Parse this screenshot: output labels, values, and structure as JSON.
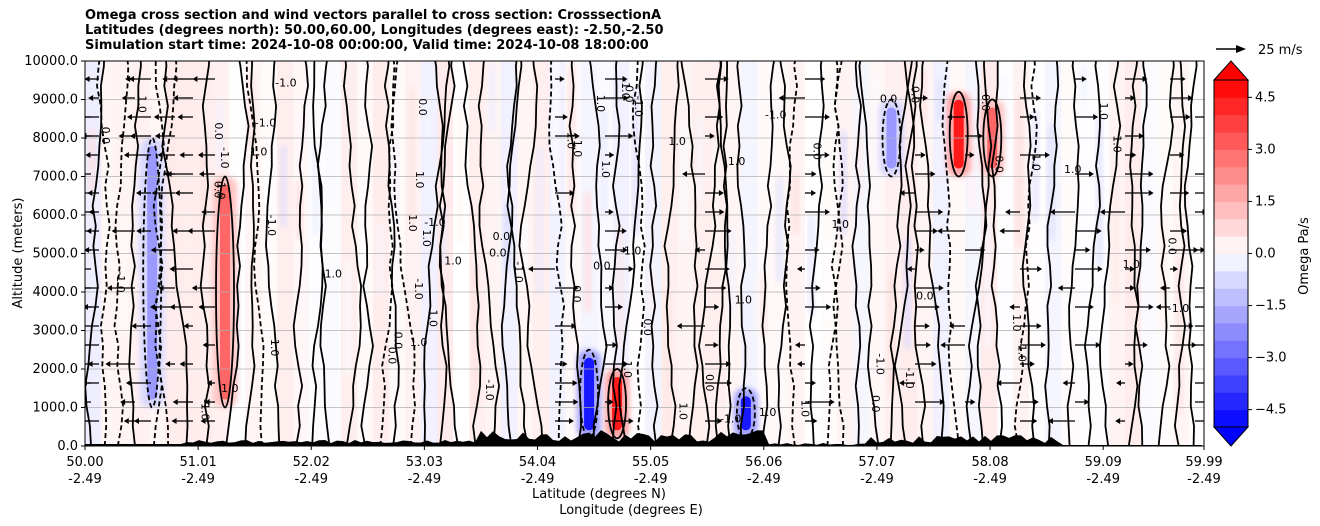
{
  "titles": {
    "line1": "Omega cross section and wind vectors parallel to cross section: CrosssectionA",
    "line2": "Latitudes (degrees north): 50.00,60.00, Longitudes (degrees east): -2.50,-2.50",
    "line3": "Simulation start time: 2024-10-08 00:00:00, Valid time: 2024-10-08 18:00:00"
  },
  "quiver_key": {
    "label": "25 m/s"
  },
  "chart_data": {
    "type": "filled-contour",
    "title": "Omega cross section and wind vectors parallel to cross section: CrosssectionA",
    "ylabel": "Altitude (meters)",
    "xlabel_1": "Latitude (degrees N)",
    "xlabel_2": "Longitude (degrees E)",
    "ylim": [
      0,
      10000
    ],
    "xlim": [
      50.0,
      59.99
    ],
    "y_ticks": [
      "0.0",
      "1000.0",
      "2000.0",
      "3000.0",
      "4000.0",
      "5000.0",
      "6000.0",
      "7000.0",
      "8000.0",
      "9000.0",
      "10000.0"
    ],
    "y_tick_values": [
      0,
      1000,
      2000,
      3000,
      4000,
      5000,
      6000,
      7000,
      8000,
      9000,
      10000
    ],
    "x_tick_values": [
      50.0,
      51.01,
      52.02,
      53.03,
      54.04,
      55.05,
      56.06,
      57.07,
      58.08,
      59.09,
      59.99
    ],
    "x_ticks_lat": [
      "50.00",
      "51.01",
      "52.02",
      "53.03",
      "54.04",
      "55.05",
      "56.06",
      "57.07",
      "58.08",
      "59.09",
      "59.99"
    ],
    "x_ticks_lon": [
      "-2.49",
      "-2.49",
      "-2.49",
      "-2.49",
      "-2.49",
      "-2.49",
      "-2.49",
      "-2.49",
      "-2.49",
      "-2.49",
      "-2.49"
    ],
    "contour_label": "0.0",
    "contour_label_alt": "-1.0",
    "contour_label_pos": "1.0",
    "colorbar": {
      "label": "Omega Pa/s",
      "range": [
        -5.0,
        5.0
      ],
      "ticks": [
        "4.5",
        "3.0",
        "1.5",
        "0.0",
        "−1.5",
        "−3.0",
        "−4.5"
      ],
      "tick_values": [
        4.5,
        3.0,
        1.5,
        0.0,
        -1.5,
        -3.0,
        -4.5
      ]
    },
    "features": [
      {
        "lat": 50.6,
        "alt_from": 1000,
        "alt_to": 8000,
        "omega": -2.0
      },
      {
        "lat": 51.25,
        "alt_from": 1000,
        "alt_to": 7000,
        "omega": 3.0
      },
      {
        "lat": 54.5,
        "alt_from": 200,
        "alt_to": 2500,
        "omega": -4.5
      },
      {
        "lat": 54.75,
        "alt_from": 200,
        "alt_to": 2000,
        "omega": 4.5
      },
      {
        "lat": 55.9,
        "alt_from": 200,
        "alt_to": 1500,
        "omega": -4.5
      },
      {
        "lat": 57.2,
        "alt_from": 7000,
        "alt_to": 9000,
        "omega": -2.0
      },
      {
        "lat": 57.8,
        "alt_from": 7000,
        "alt_to": 9200,
        "omega": 4.5
      },
      {
        "lat": 58.1,
        "alt_from": 7000,
        "alt_to": 9000,
        "omega": 3.0
      }
    ]
  }
}
